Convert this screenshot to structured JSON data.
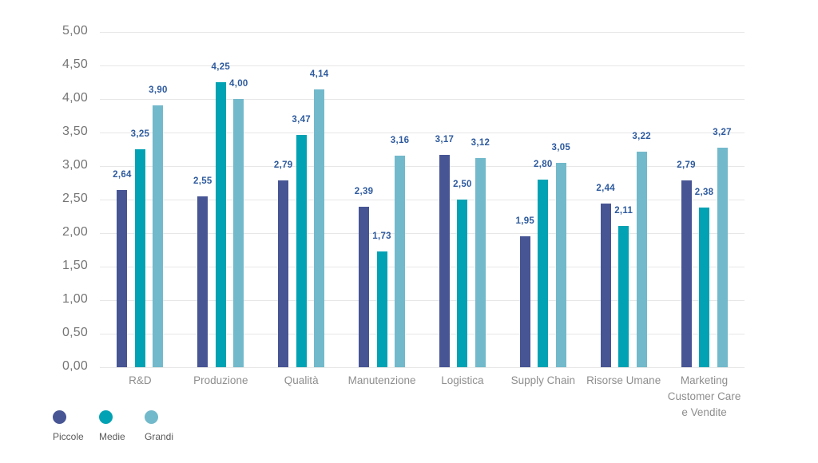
{
  "chart_data": {
    "type": "bar",
    "title": "",
    "xlabel": "",
    "ylabel": "",
    "ylim": [
      0,
      5
    ],
    "ytick_step": 0.5,
    "ytick_labels": [
      "5,00",
      "4,50",
      "4,00",
      "3,50",
      "3,00",
      "2,50",
      "2,00",
      "1,50",
      "1,00",
      "0,50",
      "0,00"
    ],
    "grid": "horizontal",
    "decimal_separator": ",",
    "legend_position": "bottom-left",
    "categories": [
      "R&D",
      "Produzione",
      "Qualità",
      "Manutenzione",
      "Logistica",
      "Supply Chain",
      "Risorse Umane",
      "Marketing\nCustomer Care\ne Vendite"
    ],
    "series": [
      {
        "name": "Piccole",
        "color": "#475595",
        "values": [
          2.64,
          2.55,
          2.79,
          2.39,
          3.17,
          1.95,
          2.44,
          2.79
        ]
      },
      {
        "name": "Medie",
        "color": "#00a2b3",
        "values": [
          3.25,
          4.25,
          3.47,
          1.73,
          2.5,
          2.8,
          2.11,
          2.38
        ]
      },
      {
        "name": "Grandi",
        "color": "#72b9cb",
        "values": [
          3.9,
          4.0,
          4.14,
          3.16,
          3.12,
          3.05,
          3.22,
          3.27
        ]
      }
    ]
  },
  "colors": {
    "background": "#ffffff",
    "gridline": "#e7e7e7",
    "value_label": "#2d5a9e",
    "y_axis_text": "#757575",
    "x_axis_text": "#8e8e8e",
    "legend_text": "#5a5a5a"
  }
}
